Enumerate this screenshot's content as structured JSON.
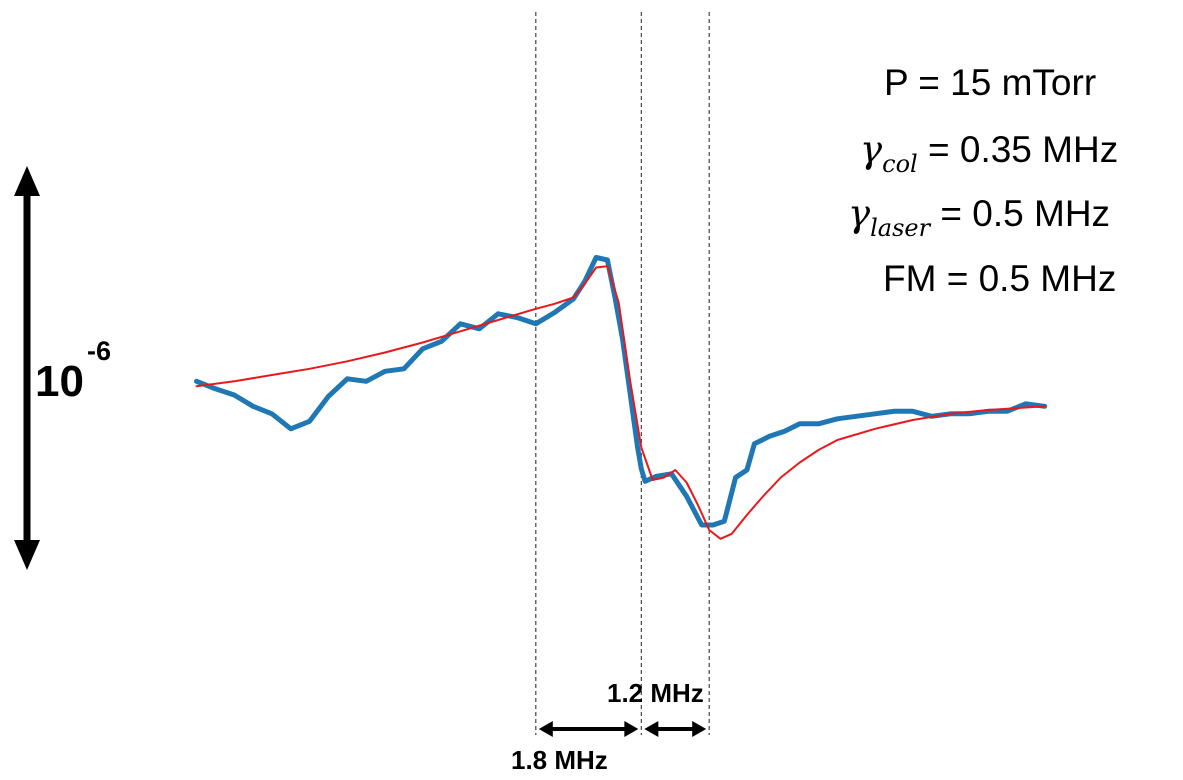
{
  "chart_data": {
    "type": "line",
    "title": "",
    "xlabel": "",
    "ylabel": "",
    "grid": false,
    "legend": "none",
    "xlim": [
      -10.2,
      12.8
    ],
    "ylim": [
      -1.0,
      1.0
    ],
    "series": [
      {
        "role": "measured",
        "color": "#1f77b4",
        "x": [
          -10.0,
          -9.5,
          -9.0,
          -8.5,
          -8.0,
          -7.5,
          -7.0,
          -6.5,
          -6.0,
          -5.5,
          -5.0,
          -4.5,
          -4.0,
          -3.5,
          -3.0,
          -2.5,
          -2.0,
          -1.5,
          -1.0,
          -0.5,
          0.0,
          0.3,
          0.6,
          0.9,
          1.1,
          1.3,
          1.5,
          1.7,
          1.8,
          1.9,
          2.2,
          2.6,
          3.0,
          3.4,
          3.7,
          4.0,
          4.3,
          4.6,
          4.8,
          5.2,
          5.6,
          6.0,
          6.5,
          7.0,
          7.5,
          8.0,
          8.5,
          9.0,
          9.5,
          10.0,
          10.5,
          11.0,
          11.5,
          12.0,
          12.5
        ],
        "y": [
          0.075,
          0.045,
          0.02,
          -0.025,
          -0.055,
          -0.115,
          -0.085,
          0.015,
          0.085,
          0.075,
          0.115,
          0.125,
          0.205,
          0.235,
          0.305,
          0.285,
          0.345,
          0.33,
          0.305,
          0.35,
          0.405,
          0.475,
          0.57,
          0.56,
          0.41,
          0.245,
          0.03,
          -0.19,
          -0.275,
          -0.325,
          -0.305,
          -0.295,
          -0.385,
          -0.5,
          -0.5,
          -0.485,
          -0.31,
          -0.28,
          -0.175,
          -0.145,
          -0.125,
          -0.095,
          -0.095,
          -0.075,
          -0.065,
          -0.055,
          -0.045,
          -0.045,
          -0.065,
          -0.055,
          -0.055,
          -0.045,
          -0.045,
          -0.015,
          -0.025
        ]
      },
      {
        "role": "fit",
        "color": "#e8191c",
        "x": [
          -10.0,
          -9.0,
          -8.0,
          -7.0,
          -6.0,
          -5.0,
          -4.0,
          -3.0,
          -2.0,
          -1.0,
          -0.5,
          0.0,
          0.3,
          0.6,
          0.9,
          1.2,
          1.5,
          1.8,
          2.1,
          2.4,
          2.7,
          3.0,
          3.3,
          3.6,
          3.9,
          4.2,
          4.6,
          5.0,
          5.5,
          6.0,
          6.5,
          7.0,
          8.0,
          9.0,
          10.0,
          11.0,
          12.0,
          12.5
        ],
        "y": [
          0.055,
          0.075,
          0.1,
          0.125,
          0.155,
          0.19,
          0.23,
          0.275,
          0.32,
          0.365,
          0.385,
          0.41,
          0.465,
          0.53,
          0.535,
          0.39,
          0.08,
          -0.19,
          -0.32,
          -0.31,
          -0.28,
          -0.33,
          -0.42,
          -0.52,
          -0.555,
          -0.535,
          -0.46,
          -0.39,
          -0.31,
          -0.25,
          -0.2,
          -0.16,
          -0.115,
          -0.08,
          -0.055,
          -0.04,
          -0.03,
          -0.025
        ]
      }
    ],
    "scale_bar": {
      "label_base": "10",
      "label_exponent": "-6"
    },
    "markers": {
      "lines_x": [
        -1.0,
        1.8,
        3.6
      ],
      "spacings": [
        {
          "from": -1.0,
          "to": 1.8,
          "label": "1.8 MHz"
        },
        {
          "from": 1.8,
          "to": 3.6,
          "label": "1.2 MHz"
        }
      ]
    },
    "annotations": {
      "pressure": "P = 15 mTorr",
      "gamma_col": {
        "symbol": "γ",
        "subscript": "col",
        "value": "= 0.35 MHz"
      },
      "gamma_laser": {
        "symbol": "γ",
        "subscript": "laser",
        "value": "= 0.5 MHz"
      },
      "fm": "FM = 0.5 MHz"
    }
  }
}
